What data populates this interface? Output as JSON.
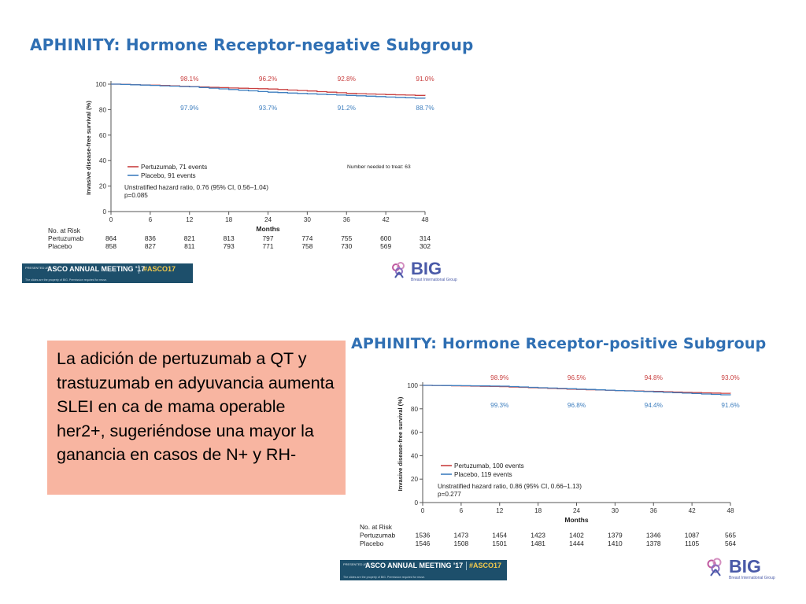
{
  "note": {
    "text": "La adición de pertuzumab a QT y trastuzumab en adyuvancia aumenta SLEI en ca de mama operable her2+, sugeriéndose una mayor la ganancia en casos de N+ y RH-"
  },
  "colors": {
    "title": "#2f6fb3",
    "pertuzumab": "#c94040",
    "placebo": "#3f7fbf",
    "note_background": "#f8b5a1",
    "asco_banner": "#1d4f6b",
    "big_logo": "#4a5aa8"
  },
  "footer": {
    "presented_at": "PRESENTED AT:",
    "meeting": "ASCO ANNUAL MEETING '17",
    "hashtag": "#ASCO17",
    "notice": "The slides are the property of BIG. Permission required for reuse.",
    "big_logo": "BIG",
    "big_sub": "Breast International Group",
    "big_icon": "ribbon-flower-icon"
  },
  "chart_data": [
    {
      "type": "line",
      "title": "APHINITY: Hormone Receptor-negative Subgroup",
      "xlabel": "Months",
      "ylabel": "Invasive disease-free survival (%)",
      "xlim": [
        0,
        48
      ],
      "ylim": [
        0,
        100
      ],
      "xticks": [
        "0",
        "6",
        "12",
        "18",
        "24",
        "30",
        "36",
        "42",
        "48"
      ],
      "yticks": [
        "0",
        "20",
        "40",
        "60",
        "80",
        "100"
      ],
      "series": [
        {
          "name": "Pertuzumab, 71 events",
          "color": "#c94040",
          "x": [
            0,
            6,
            12,
            18,
            24,
            30,
            36,
            42,
            48
          ],
          "y": [
            100,
            99.2,
            98.1,
            97.0,
            96.2,
            94.6,
            92.8,
            91.8,
            91.0
          ]
        },
        {
          "name": "Placebo, 91 events",
          "color": "#3f7fbf",
          "x": [
            0,
            6,
            12,
            18,
            24,
            30,
            36,
            42,
            48
          ],
          "y": [
            100,
            99.0,
            97.9,
            95.8,
            93.7,
            92.4,
            91.2,
            89.9,
            88.7
          ]
        }
      ],
      "annotations_top": [
        {
          "x": 12,
          "label": "98.1%"
        },
        {
          "x": 24,
          "label": "96.2%"
        },
        {
          "x": 36,
          "label": "92.8%"
        },
        {
          "x": 48,
          "label": "91.0%"
        }
      ],
      "annotations_bottom": [
        {
          "x": 12,
          "label": "97.9%"
        },
        {
          "x": 24,
          "label": "93.7%"
        },
        {
          "x": 36,
          "label": "91.2%"
        },
        {
          "x": 48,
          "label": "88.7%"
        }
      ],
      "nnt": "Number needed to treat: 63",
      "hazard_ratio": "Unstratified hazard ratio, 0.76 (95% CI, 0.56–1.04)",
      "p_value": "p=0.085",
      "risk_table": {
        "header": "No. at Risk",
        "rows": [
          {
            "label": "Pertuzumab",
            "values": [
              "864",
              "836",
              "821",
              "813",
              "797",
              "774",
              "755",
              "600",
              "314"
            ]
          },
          {
            "label": "Placebo",
            "values": [
              "858",
              "827",
              "811",
              "793",
              "771",
              "758",
              "730",
              "569",
              "302"
            ]
          }
        ]
      }
    },
    {
      "type": "line",
      "title": "APHINITY: Hormone Receptor-positive Subgroup",
      "xlabel": "Months",
      "ylabel": "Invasive disease-free survival (%)",
      "xlim": [
        0,
        48
      ],
      "ylim": [
        0,
        100
      ],
      "xticks": [
        "0",
        "6",
        "12",
        "18",
        "24",
        "30",
        "36",
        "42",
        "48"
      ],
      "yticks": [
        "0",
        "20",
        "40",
        "60",
        "80",
        "100"
      ],
      "series": [
        {
          "name": "Pertuzumab, 100 events",
          "color": "#c94040",
          "x": [
            0,
            6,
            12,
            18,
            24,
            30,
            36,
            42,
            48
          ],
          "y": [
            100,
            99.5,
            98.9,
            97.7,
            96.5,
            95.6,
            94.8,
            93.8,
            93.0
          ]
        },
        {
          "name": "Placebo, 119 events",
          "color": "#3f7fbf",
          "x": [
            0,
            6,
            12,
            18,
            24,
            30,
            36,
            42,
            48
          ],
          "y": [
            100,
            99.7,
            99.3,
            98.0,
            96.8,
            95.6,
            94.4,
            93.0,
            91.6
          ]
        }
      ],
      "annotations_top": [
        {
          "x": 12,
          "label": "98.9%"
        },
        {
          "x": 24,
          "label": "96.5%"
        },
        {
          "x": 36,
          "label": "94.8%"
        },
        {
          "x": 48,
          "label": "93.0%"
        }
      ],
      "annotations_bottom": [
        {
          "x": 12,
          "label": "99.3%"
        },
        {
          "x": 24,
          "label": "96.8%"
        },
        {
          "x": 36,
          "label": "94.4%"
        },
        {
          "x": 48,
          "label": "91.6%"
        }
      ],
      "hazard_ratio": "Unstratified hazard ratio, 0.86 (95% CI, 0.66–1.13)",
      "p_value": "p=0.277",
      "risk_table": {
        "header": "No. at Risk",
        "rows": [
          {
            "label": "Pertuzumab",
            "values": [
              "1536",
              "1473",
              "1454",
              "1423",
              "1402",
              "1379",
              "1346",
              "1087",
              "565"
            ]
          },
          {
            "label": "Placebo",
            "values": [
              "1546",
              "1508",
              "1501",
              "1481",
              "1444",
              "1410",
              "1378",
              "1105",
              "564"
            ]
          }
        ]
      }
    }
  ]
}
